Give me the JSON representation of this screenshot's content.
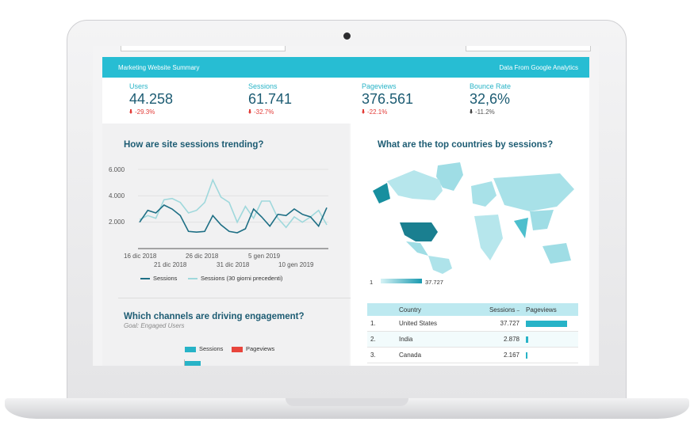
{
  "header": {
    "left": "Marketing Website Summary",
    "right": "Data From Google Analytics"
  },
  "kpis": [
    {
      "label": "Users",
      "value": "44.258",
      "change": "-29.3%",
      "trend": "down"
    },
    {
      "label": "Sessions",
      "value": "61.741",
      "change": "-32.7%",
      "trend": "down"
    },
    {
      "label": "Pageviews",
      "value": "376.561",
      "change": "-22.1%",
      "trend": "down"
    },
    {
      "label": "Bounce Rate",
      "value": "32,6%",
      "change": "-11.2%",
      "trend": "neutral"
    }
  ],
  "sessions_chart": {
    "title": "How are site sessions trending?",
    "y_ticks": [
      "6.000",
      "4.000",
      "2.000"
    ],
    "x_ticks_row1": [
      "16 dic 2018",
      "26 dic 2018",
      "5 gen 2019"
    ],
    "x_ticks_row2": [
      "21 dic 2018",
      "31 dic 2018",
      "10 gen 2019"
    ],
    "legend": [
      "Sessions",
      "Sessions (30 giorni precedenti)"
    ]
  },
  "chart_data": {
    "type": "line",
    "ylim": [
      0,
      6000
    ],
    "series": [
      {
        "name": "Sessions",
        "color": "#1e6f85",
        "values": [
          2000,
          2900,
          2700,
          3300,
          3000,
          2500,
          1300,
          1250,
          1300,
          2500,
          1800,
          1300,
          1200,
          1500,
          3000,
          2400,
          1700,
          2600,
          2500,
          3000,
          2600,
          2400,
          1700,
          3100
        ]
      },
      {
        "name": "Sessions (30 giorni precedenti)",
        "color": "#9fd8dc",
        "values": [
          2200,
          2500,
          2300,
          3700,
          3800,
          3500,
          2700,
          2900,
          3500,
          5200,
          3900,
          3500,
          2000,
          3200,
          2300,
          3600,
          3600,
          2300,
          1600,
          2400,
          2000,
          2400,
          2900,
          1800
        ]
      }
    ]
  },
  "channels": {
    "title": "Which channels are driving engagement?",
    "subtitle": "Goal: Engaged Users",
    "legend": [
      "Sessions",
      "Pageviews"
    ],
    "colors": [
      "#27b3c7",
      "#e8453c"
    ]
  },
  "countries": {
    "title": "What are the top countries by sessions?",
    "scale_min": "1",
    "scale_max": "37.727",
    "columns": [
      "Country",
      "Sessions",
      "Pageviews"
    ],
    "rows": [
      {
        "rank": "1.",
        "country": "United States",
        "sessions": "37.727",
        "pv_fraction": 1.0
      },
      {
        "rank": "2.",
        "country": "India",
        "sessions": "2.878",
        "pv_fraction": 0.05
      },
      {
        "rank": "3.",
        "country": "Canada",
        "sessions": "2.167",
        "pv_fraction": 0.04
      }
    ]
  }
}
